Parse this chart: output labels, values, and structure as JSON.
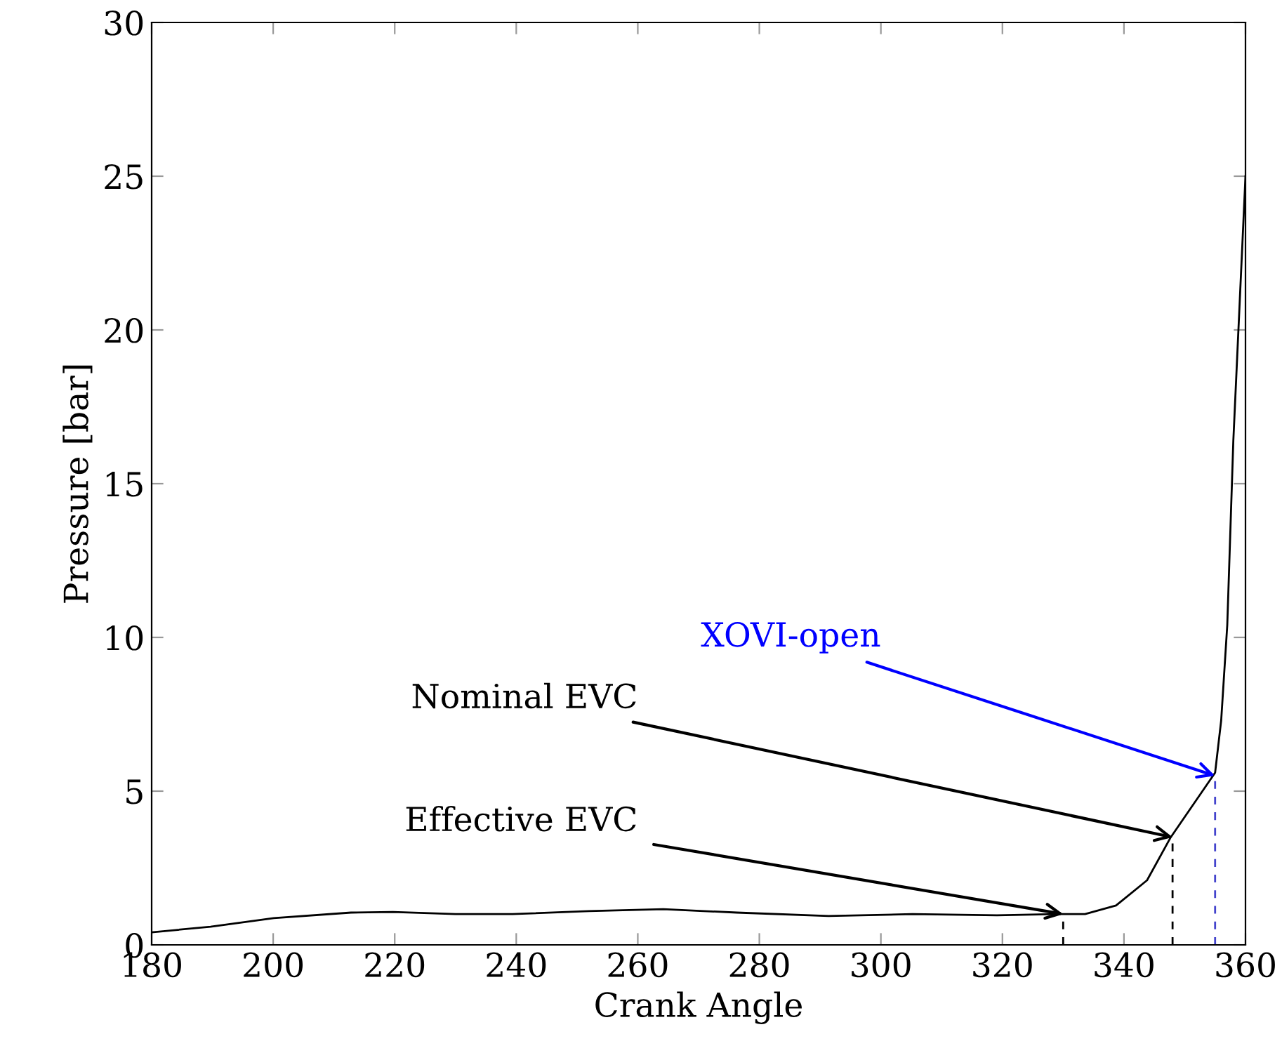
{
  "chart_data": {
    "type": "line",
    "xlabel": "Crank Angle",
    "ylabel": "Pressure [bar]",
    "x": [
      180,
      189.7,
      200.1,
      212.8,
      219.7,
      230,
      239.4,
      252,
      264.2,
      276.3,
      291.4,
      305.2,
      319.1,
      328.9,
      333.6,
      338.7,
      343.8,
      347.7,
      355,
      356,
      357,
      358,
      359,
      360
    ],
    "series": [
      {
        "color": "#000000",
        "values": [
          0.41,
          0.59,
          0.87,
          1.05,
          1.07,
          1.0,
          1.0,
          1.1,
          1.16,
          1.05,
          0.94,
          1.0,
          0.96,
          1.0,
          1.0,
          1.28,
          2.1,
          3.5,
          5.6,
          7.3,
          10.4,
          16.4,
          20.7,
          25
        ]
      },
      {
        "color": "#000000",
        "x": [
          330,
          330
        ],
        "values": [
          0,
          1.0
        ],
        "line_style": "dashed"
      },
      {
        "color": "#000000",
        "x": [
          348,
          348
        ],
        "values": [
          0,
          3.5
        ],
        "line_style": "dashed"
      },
      {
        "color": "#4444cc",
        "x": [
          355,
          355
        ],
        "values": [
          0,
          5.5
        ],
        "line_style": "dashed"
      }
    ],
    "xlim": [
      180,
      360
    ],
    "xticks": [
      180,
      200,
      220,
      240,
      260,
      280,
      300,
      320,
      340,
      360
    ],
    "ylim": [
      0,
      30
    ],
    "yticks": [
      0,
      5,
      10,
      15,
      20,
      25,
      30
    ],
    "marker": "none",
    "line_style": "solid",
    "annotations": [
      {
        "text": "XOVI-open",
        "x": 355,
        "y": 5.5
      },
      {
        "text": "Nominal EVC",
        "x": 348,
        "y": 3.5
      },
      {
        "text": "Effective EVC",
        "x": 330,
        "y": 1.0
      }
    ]
  }
}
